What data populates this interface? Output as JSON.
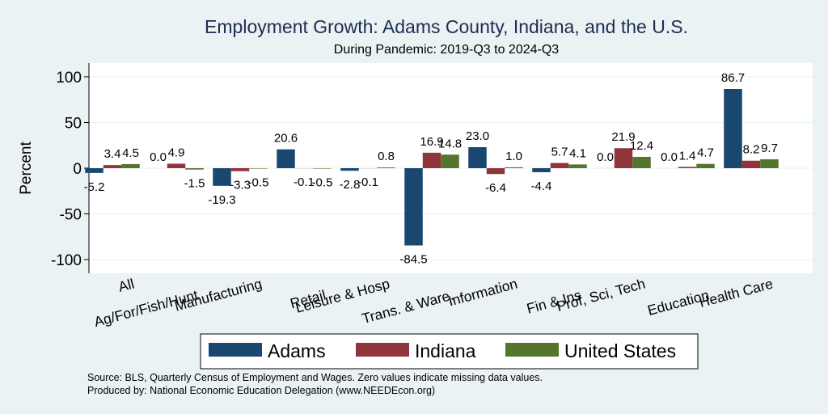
{
  "chart_data": {
    "type": "bar",
    "title": "Employment Growth: Adams County, Indiana, and the U.S.",
    "subtitle": "During Pandemic: 2019-Q3 to 2024-Q3",
    "ylabel": "Percent",
    "xlabel": "",
    "ylim": [
      -115,
      115
    ],
    "yticks": [
      -100,
      -50,
      0,
      50,
      100
    ],
    "grid": true,
    "legend_position": "bottom",
    "categories": [
      "All",
      "Ag/For/Fish/Hunt",
      "Manufacturing",
      "Retail",
      "Leisure & Hosp",
      "Trans. & Ware.",
      "Information",
      "Fin & Ins",
      "Prof, Sci, Tech",
      "Education",
      "Health Care"
    ],
    "series": [
      {
        "name": "Adams",
        "color": "#1a476f",
        "values": [
          -5.2,
          0.0,
          -19.3,
          20.6,
          -2.8,
          -84.5,
          23.0,
          -4.4,
          0.0,
          0.0,
          86.7
        ]
      },
      {
        "name": "Indiana",
        "color": "#90353b",
        "values": [
          3.4,
          4.9,
          -3.3,
          -0.1,
          -0.1,
          16.9,
          -6.4,
          5.7,
          21.9,
          1.4,
          8.2
        ]
      },
      {
        "name": "United States",
        "color": "#55752f",
        "values": [
          4.5,
          -1.5,
          -0.5,
          -0.5,
          0.8,
          14.8,
          1.0,
          4.1,
          12.4,
          4.7,
          9.7
        ]
      }
    ],
    "value_labels": [
      [
        "-5.2",
        "0.0",
        "-19.3",
        "20.6",
        "-2.8",
        "-84.5",
        "23.0",
        "-4.4",
        "0.0",
        "0.0",
        "86.7"
      ],
      [
        "3.4",
        "4.9",
        "-3.3",
        "-0.1",
        "-0.1",
        "16.9",
        "-6.4",
        "5.7",
        "21.9",
        "1.4",
        "8.2"
      ],
      [
        "4.5",
        "-1.5",
        "-0.5",
        "-0.5",
        "0.8",
        "14.8",
        "1.0",
        "4.1",
        "12.4",
        "4.7",
        "9.7"
      ]
    ],
    "source_lines": [
      "Source: BLS, Quarterly Census of Employment and Wages. Zero values indicate missing data values.",
      "Produced by: National Economic Education Delegation (www.NEEDEcon.org)"
    ],
    "colors": {
      "background": "#eaf2f3",
      "plot_background": "#ffffff",
      "title": "#1e2d53",
      "grid": "#eaf2f3"
    }
  }
}
